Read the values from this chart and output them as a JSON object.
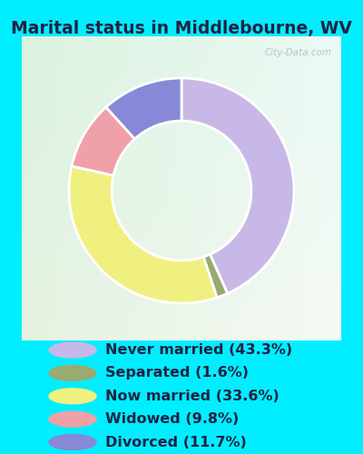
{
  "title": "Marital status in Middlebourne, WV",
  "title_fontsize": 13.5,
  "title_fontweight": "bold",
  "slices": [
    43.3,
    1.6,
    33.6,
    9.8,
    11.7
  ],
  "labels": [
    "Never married (43.3%)",
    "Separated (1.6%)",
    "Now married (33.6%)",
    "Widowed (9.8%)",
    "Divorced (11.7%)"
  ],
  "colors": [
    "#c8b8e8",
    "#9aaa70",
    "#f0f080",
    "#f0a0a8",
    "#8888d8"
  ],
  "legend_circle_colors": [
    "#c8b8e8",
    "#9aaa70",
    "#f0f080",
    "#f0a0a8",
    "#8888d8"
  ],
  "start_angle": 90,
  "donut_width": 0.38,
  "outer_bg": "#00eeff",
  "chart_bg_top_left": "#d8ede0",
  "chart_bg_bottom_right": "#e8f8e8",
  "legend_fontsize": 11.5,
  "legend_text_color": "#222244",
  "watermark": "City-Data.com",
  "title_color": "#222244"
}
